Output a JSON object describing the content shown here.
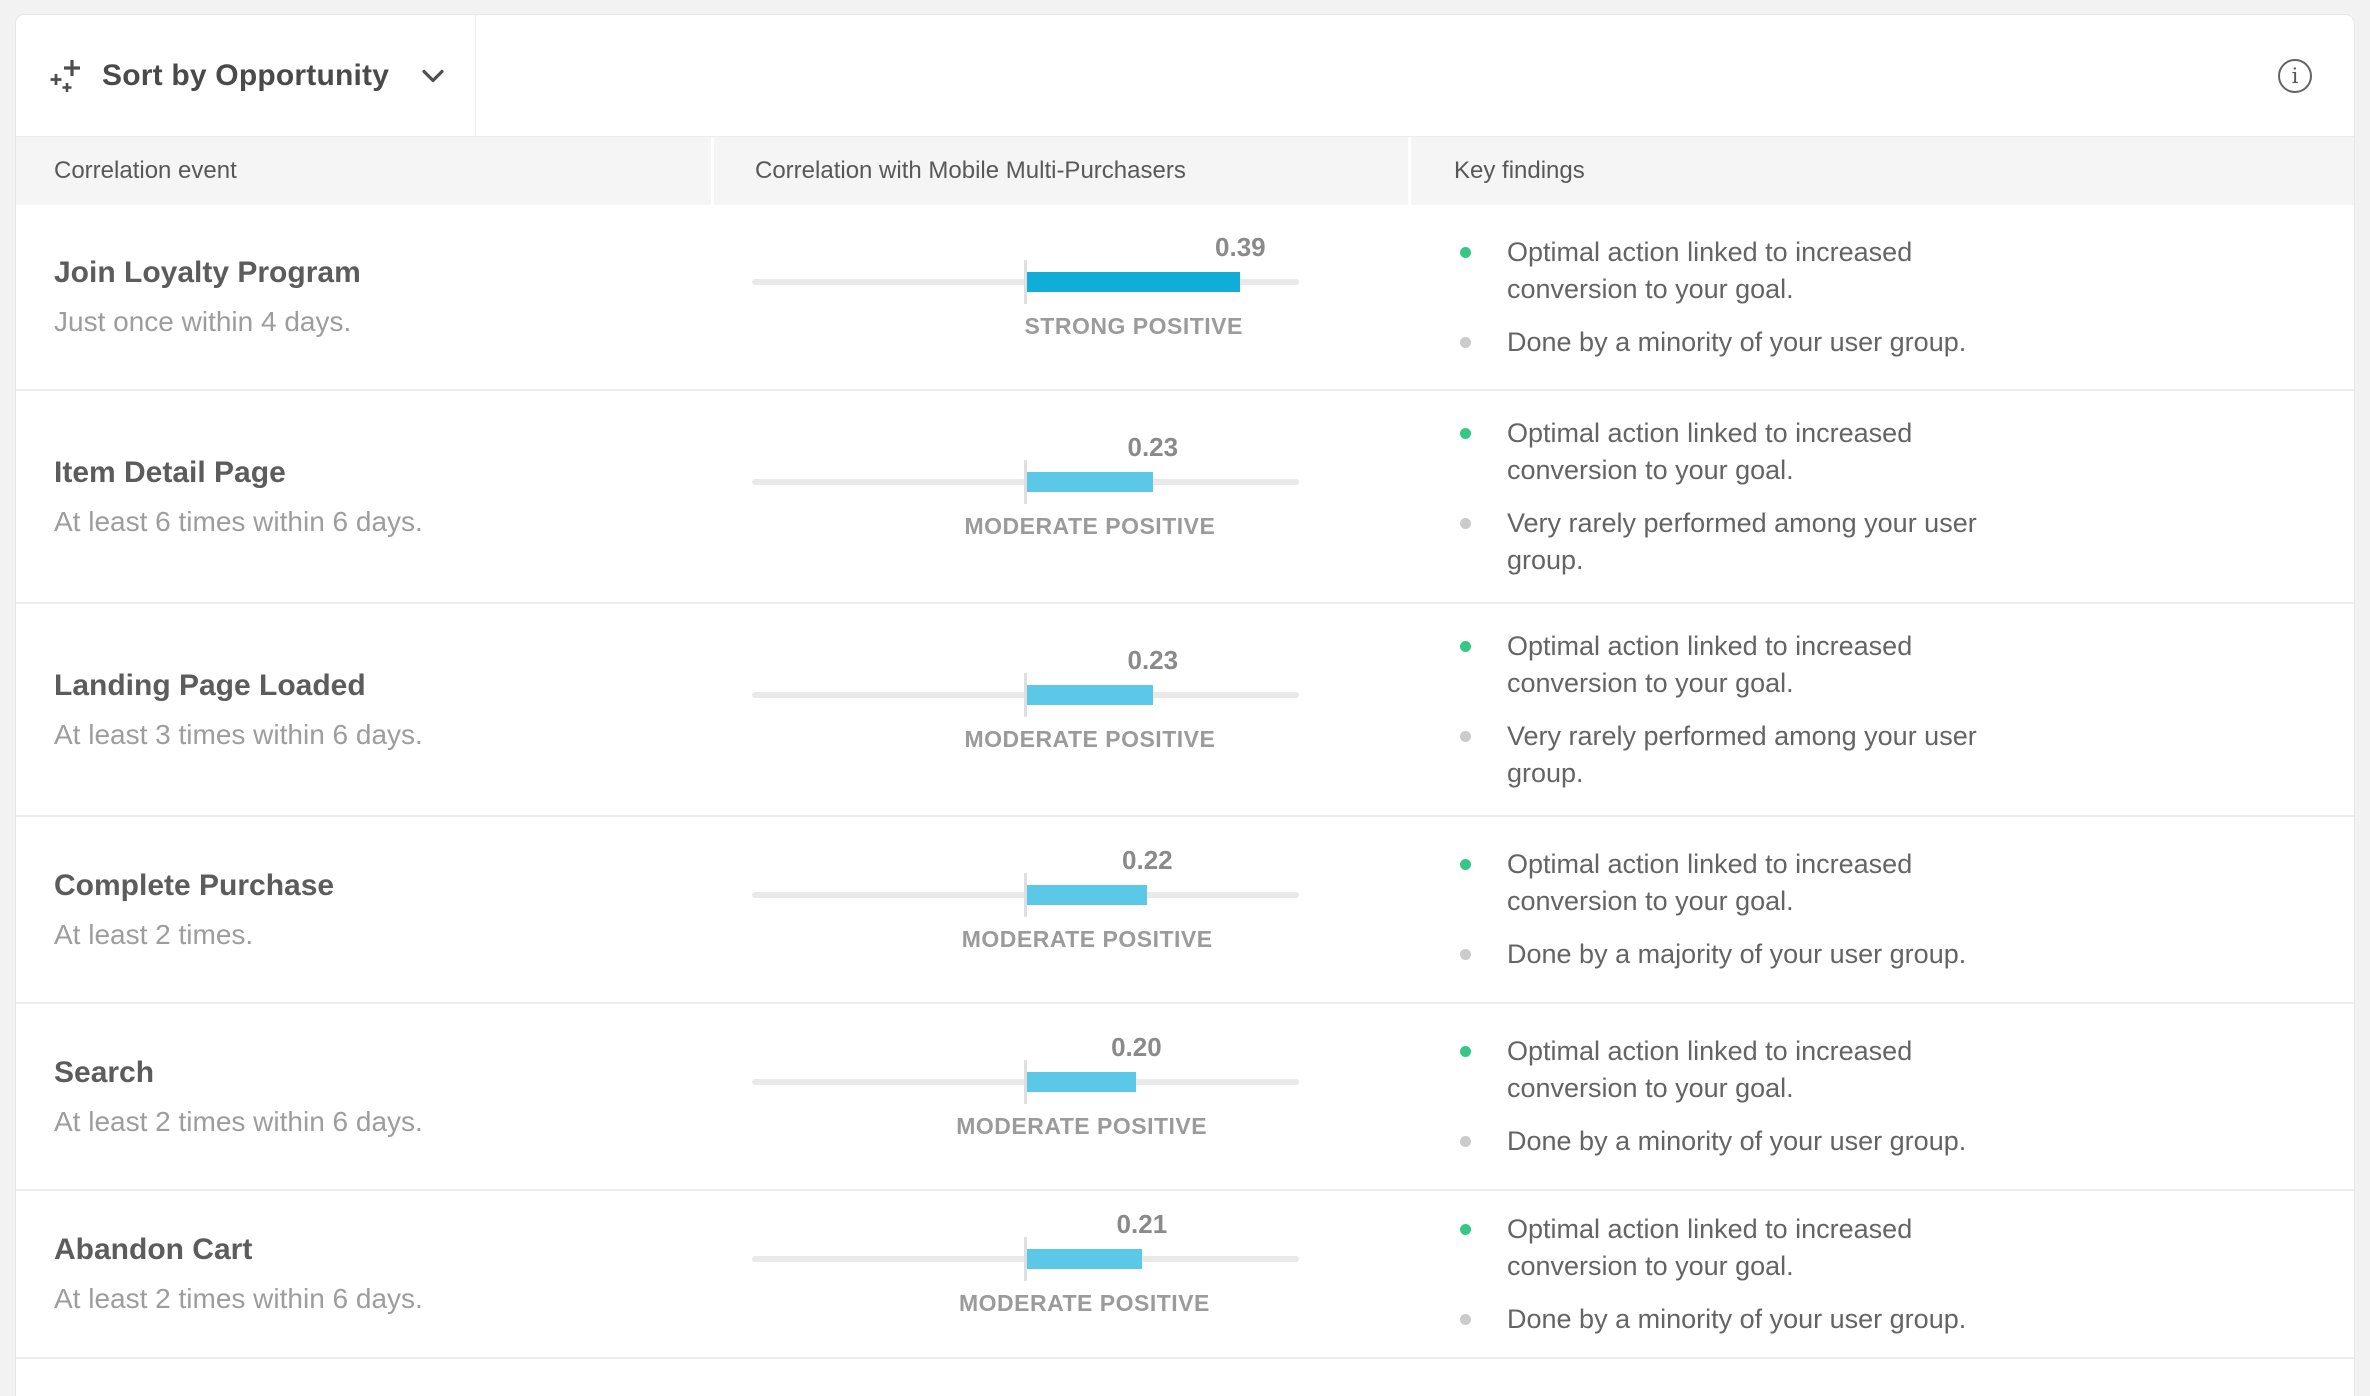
{
  "toolbar": {
    "sort_label": "Sort by Opportunity"
  },
  "icons": {
    "sort": "sparkle-plusses-icon",
    "dropdown": "chevron-down-icon",
    "info": "info-circle-icon",
    "finding_positive": "green-dot-icon",
    "finding_neutral": "gray-dot-icon"
  },
  "colors": {
    "strong": "#10AED6",
    "moderate": "#5BC8E8",
    "track": "#E9E9E9",
    "green_bullet": "#36C786",
    "gray_bullet": "#CBCBCB"
  },
  "columns": [
    {
      "label": "Correlation event"
    },
    {
      "label": "Correlation with Mobile Multi-Purchasers"
    },
    {
      "label": "Key findings"
    }
  ],
  "axis": {
    "min": -0.5,
    "max": 0.5
  },
  "rows": [
    {
      "title": "Join Loyalty Program",
      "subtitle": "Just once within 4 days.",
      "value": 0.39,
      "value_label": "0.39",
      "strength": "STRONG POSITIVE",
      "strength_key": "strong",
      "findings": [
        {
          "bullet": "green",
          "text": "Optimal action linked to increased conversion to your goal."
        },
        {
          "bullet": "gray",
          "text": "Done by a minority of your user group."
        }
      ]
    },
    {
      "title": "Item Detail Page",
      "subtitle": "At least 6 times within 6 days.",
      "value": 0.23,
      "value_label": "0.23",
      "strength": "MODERATE POSITIVE",
      "strength_key": "moderate",
      "findings": [
        {
          "bullet": "green",
          "text": "Optimal action linked to increased conversion to your goal."
        },
        {
          "bullet": "gray",
          "text": "Very rarely performed among your user group."
        }
      ]
    },
    {
      "title": "Landing Page Loaded",
      "subtitle": "At least 3 times within 6 days.",
      "value": 0.23,
      "value_label": "0.23",
      "strength": "MODERATE POSITIVE",
      "strength_key": "moderate",
      "findings": [
        {
          "bullet": "green",
          "text": "Optimal action linked to increased conversion to your goal."
        },
        {
          "bullet": "gray",
          "text": "Very rarely performed among your user group."
        }
      ]
    },
    {
      "title": "Complete Purchase",
      "subtitle": "At least 2 times.",
      "value": 0.22,
      "value_label": "0.22",
      "strength": "MODERATE POSITIVE",
      "strength_key": "moderate",
      "findings": [
        {
          "bullet": "green",
          "text": "Optimal action linked to increased conversion to your goal."
        },
        {
          "bullet": "gray",
          "text": "Done by a majority of your user group."
        }
      ]
    },
    {
      "title": "Search",
      "subtitle": "At least 2 times within 6 days.",
      "value": 0.2,
      "value_label": "0.20",
      "strength": "MODERATE POSITIVE",
      "strength_key": "moderate",
      "findings": [
        {
          "bullet": "green",
          "text": "Optimal action linked to increased conversion to your goal."
        },
        {
          "bullet": "gray",
          "text": "Done by a minority of your user group."
        }
      ]
    },
    {
      "title": "Abandon Cart",
      "subtitle": "At least 2 times within 6 days.",
      "value": 0.21,
      "value_label": "0.21",
      "strength": "MODERATE POSITIVE",
      "strength_key": "moderate",
      "findings": [
        {
          "bullet": "green",
          "text": "Optimal action linked to increased conversion to your goal."
        },
        {
          "bullet": "gray",
          "text": "Done by a minority of your user group."
        }
      ]
    }
  ]
}
